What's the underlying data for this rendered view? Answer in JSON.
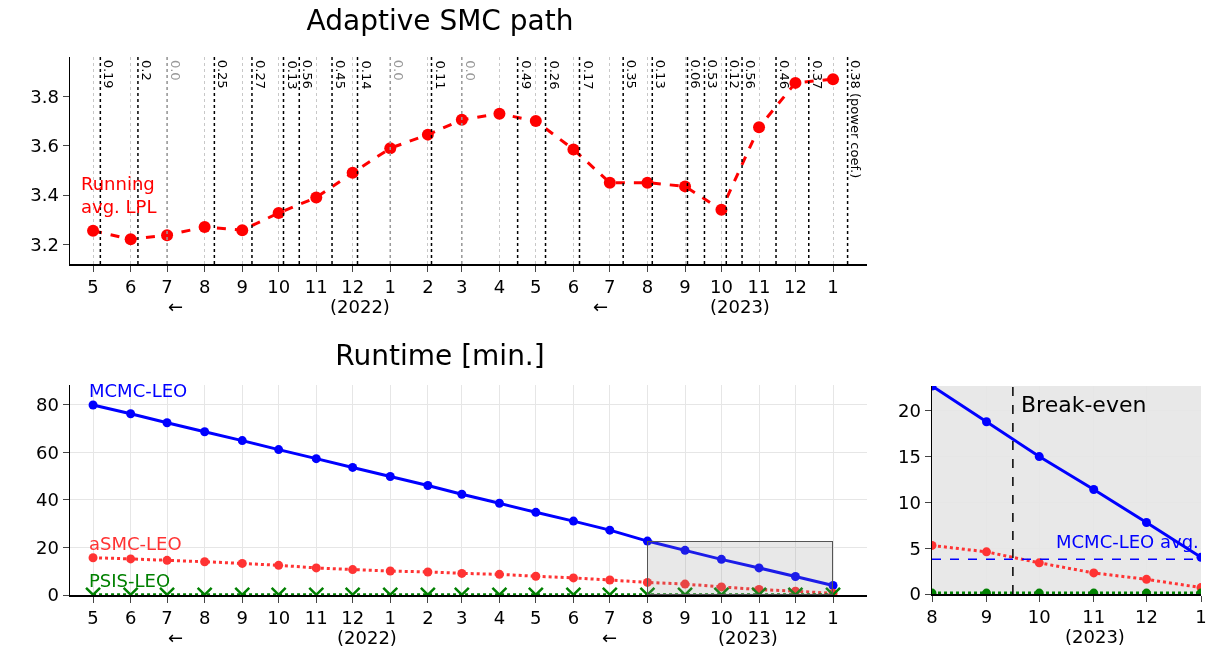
{
  "chart_data": [
    {
      "type": "line",
      "title": "Adaptive SMC path",
      "x": [
        "2022-05",
        "2022-06",
        "2022-07",
        "2022-08",
        "2022-09",
        "2022-10",
        "2022-11",
        "2022-12",
        "2023-01",
        "2023-02",
        "2023-03",
        "2023-04",
        "2023-05",
        "2023-06",
        "2023-07",
        "2023-08",
        "2023-09",
        "2023-10",
        "2023-11",
        "2023-12",
        "2024-01"
      ],
      "series": [
        {
          "name": "Running avg. LPL",
          "color": "#ff0000",
          "line_style": "dashed",
          "marker": "circle",
          "values": [
            3.255,
            3.22,
            3.237,
            3.27,
            3.257,
            3.327,
            3.39,
            3.49,
            3.59,
            3.645,
            3.705,
            3.73,
            3.7,
            3.585,
            3.45,
            3.45,
            3.435,
            3.34,
            3.675,
            3.855,
            3.87
          ]
        }
      ],
      "xlim": [
        "2022-04-12",
        "2024-01-29"
      ],
      "ylim": [
        3.12,
        3.96
      ],
      "yticks": [
        3.2,
        3.4,
        3.6,
        3.8
      ],
      "xticks": [
        {
          "value": "2022-05",
          "label": "5"
        },
        {
          "value": "2022-06",
          "label": "6"
        },
        {
          "value": "2022-07",
          "label": "7"
        },
        {
          "value": "2022-08",
          "label": "8"
        },
        {
          "value": "2022-09",
          "label": "9"
        },
        {
          "value": "2022-10",
          "label": "10"
        },
        {
          "value": "2022-11",
          "label": "11"
        },
        {
          "value": "2022-12",
          "label": "12"
        },
        {
          "value": "2023-01",
          "label": "1"
        },
        {
          "value": "2023-02",
          "label": "2"
        },
        {
          "value": "2023-03",
          "label": "3"
        },
        {
          "value": "2023-04",
          "label": "4"
        },
        {
          "value": "2023-05",
          "label": "5"
        },
        {
          "value": "2023-06",
          "label": "6"
        },
        {
          "value": "2023-07",
          "label": "7"
        },
        {
          "value": "2023-08",
          "label": "8"
        },
        {
          "value": "2023-09",
          "label": "9"
        },
        {
          "value": "2023-10",
          "label": "10"
        },
        {
          "value": "2023-11",
          "label": "11"
        },
        {
          "value": "2023-12",
          "label": "12"
        },
        {
          "value": "2024-01",
          "label": "1"
        }
      ],
      "ref_lines": [
        {
          "axis": "x",
          "value": "2022-05-07",
          "label": "0.19",
          "color": "#000000",
          "line_style": "dotted"
        },
        {
          "axis": "x",
          "value": "2022-06-07",
          "label": "0.2",
          "color": "#000000",
          "line_style": "dotted"
        },
        {
          "axis": "x",
          "value": "2022-07-01",
          "label": "0.0",
          "color": "#999999",
          "line_style": "dotted"
        },
        {
          "axis": "x",
          "value": "2022-08-09",
          "label": "0.25",
          "color": "#000000",
          "line_style": "dotted"
        },
        {
          "axis": "x",
          "value": "2022-09-09",
          "label": "0.27",
          "color": "#000000",
          "line_style": "dotted"
        },
        {
          "axis": "x",
          "value": "2022-10-05",
          "label": "0.13",
          "color": "#000000",
          "line_style": "dotted"
        },
        {
          "axis": "x",
          "value": "2022-10-18",
          "label": "0.56",
          "color": "#000000",
          "line_style": "dotted"
        },
        {
          "axis": "x",
          "value": "2022-11-14",
          "label": "0.45",
          "color": "#000000",
          "line_style": "dotted"
        },
        {
          "axis": "x",
          "value": "2022-12-05",
          "label": "0.14",
          "color": "#000000",
          "line_style": "dotted"
        },
        {
          "axis": "x",
          "value": "2023-01-01",
          "label": "0.0",
          "color": "#999999",
          "line_style": "dotted"
        },
        {
          "axis": "x",
          "value": "2023-02-04",
          "label": "0.11",
          "color": "#000000",
          "line_style": "dotted"
        },
        {
          "axis": "x",
          "value": "2023-03-01",
          "label": "0.0",
          "color": "#999999",
          "line_style": "dotted"
        },
        {
          "axis": "x",
          "value": "2023-04-16",
          "label": "0.49",
          "color": "#000000",
          "line_style": "dotted"
        },
        {
          "axis": "x",
          "value": "2023-05-09",
          "label": "0.26",
          "color": "#000000",
          "line_style": "dotted"
        },
        {
          "axis": "x",
          "value": "2023-06-06",
          "label": "0.17",
          "color": "#000000",
          "line_style": "dotted"
        },
        {
          "axis": "x",
          "value": "2023-07-12",
          "label": "0.35",
          "color": "#000000",
          "line_style": "dotted"
        },
        {
          "axis": "x",
          "value": "2023-08-05",
          "label": "0.13",
          "color": "#000000",
          "line_style": "dotted"
        },
        {
          "axis": "x",
          "value": "2023-09-03",
          "label": "0.06",
          "color": "#000000",
          "line_style": "dotted"
        },
        {
          "axis": "x",
          "value": "2023-09-17",
          "label": "0.53",
          "color": "#000000",
          "line_style": "dotted"
        },
        {
          "axis": "x",
          "value": "2023-10-05",
          "label": "0.12",
          "color": "#000000",
          "line_style": "dotted"
        },
        {
          "axis": "x",
          "value": "2023-10-18",
          "label": "0.56",
          "color": "#000000",
          "line_style": "dotted"
        },
        {
          "axis": "x",
          "value": "2023-11-15",
          "label": "0.46",
          "color": "#000000",
          "line_style": "dotted"
        },
        {
          "axis": "x",
          "value": "2023-12-12",
          "label": "0.37",
          "color": "#000000",
          "line_style": "dotted"
        },
        {
          "axis": "x",
          "value": "2024-01-13",
          "label": "0.38 (power coef.)",
          "color": "#000000",
          "line_style": "dotted"
        }
      ],
      "annotations": [
        "←",
        "(2022)",
        "←",
        "(2023)"
      ],
      "grid": "x",
      "legend": false
    },
    {
      "type": "line",
      "title": "Runtime [min.]",
      "x": [
        "2022-05",
        "2022-06",
        "2022-07",
        "2022-08",
        "2022-09",
        "2022-10",
        "2022-11",
        "2022-12",
        "2023-01",
        "2023-02",
        "2023-03",
        "2023-04",
        "2023-05",
        "2023-06",
        "2023-07",
        "2023-08",
        "2023-09",
        "2023-10",
        "2023-11",
        "2023-12",
        "2024-01"
      ],
      "series": [
        {
          "name": "MCMC-LEO",
          "color": "#0000ff",
          "line_style": "solid",
          "marker": "circle",
          "values": [
            80,
            76.3,
            72.5,
            68.7,
            65,
            61.2,
            57.4,
            53.7,
            49.9,
            46.1,
            42.4,
            38.6,
            34.8,
            31.1,
            27.3,
            22.7,
            18.8,
            15.0,
            11.4,
            7.8,
            4.0
          ]
        },
        {
          "name": "aSMC-LEO",
          "color": "#ff3333",
          "line_style": "dotted",
          "marker": "circle",
          "values": [
            15.7,
            15.2,
            14.6,
            14.0,
            13.3,
            12.5,
            11.4,
            10.7,
            10.1,
            9.7,
            9.1,
            8.7,
            7.9,
            7.2,
            6.3,
            5.3,
            4.6,
            3.4,
            2.3,
            1.6,
            0.7
          ]
        },
        {
          "name": "PSIS-LEO",
          "color": "#008000",
          "line_style": "dotted",
          "marker": "cross",
          "values": [
            0.1,
            0.1,
            0.1,
            0.1,
            0.1,
            0.1,
            0.1,
            0.1,
            0.1,
            0.1,
            0.1,
            0.1,
            0.1,
            0.1,
            0.1,
            0.1,
            0.1,
            0.1,
            0.1,
            0.1,
            0.1
          ]
        }
      ],
      "xlim": [
        "2022-04-12",
        "2024-01-29"
      ],
      "ylim": [
        0,
        88.4
      ],
      "yticks": [
        0,
        20,
        40,
        60,
        80
      ],
      "xticks": [
        {
          "value": "2022-05",
          "label": "5"
        },
        {
          "value": "2022-06",
          "label": "6"
        },
        {
          "value": "2022-07",
          "label": "7"
        },
        {
          "value": "2022-08",
          "label": "8"
        },
        {
          "value": "2022-09",
          "label": "9"
        },
        {
          "value": "2022-10",
          "label": "10"
        },
        {
          "value": "2022-11",
          "label": "11"
        },
        {
          "value": "2022-12",
          "label": "12"
        },
        {
          "value": "2023-01",
          "label": "1"
        },
        {
          "value": "2023-02",
          "label": "2"
        },
        {
          "value": "2023-03",
          "label": "3"
        },
        {
          "value": "2023-04",
          "label": "4"
        },
        {
          "value": "2023-05",
          "label": "5"
        },
        {
          "value": "2023-06",
          "label": "6"
        },
        {
          "value": "2023-07",
          "label": "7"
        },
        {
          "value": "2023-08",
          "label": "8"
        },
        {
          "value": "2023-09",
          "label": "9"
        },
        {
          "value": "2023-10",
          "label": "10"
        },
        {
          "value": "2023-11",
          "label": "11"
        },
        {
          "value": "2023-12",
          "label": "12"
        },
        {
          "value": "2024-01",
          "label": "1"
        }
      ],
      "annotations": [
        "←",
        "(2022)",
        "←",
        "(2023)"
      ],
      "grid": true,
      "legend": false
    },
    {
      "type": "line",
      "x": [
        "2023-08",
        "2023-09",
        "2023-10",
        "2023-11",
        "2023-12",
        "2024-01"
      ],
      "series": [
        {
          "color": "#0000ff",
          "line_style": "solid",
          "marker": "circle",
          "values": [
            22.7,
            18.8,
            15.0,
            11.4,
            7.8,
            4.0
          ]
        },
        {
          "color": "#ff3333",
          "line_style": "dotted",
          "marker": "circle",
          "values": [
            5.3,
            4.6,
            3.4,
            2.3,
            1.6,
            0.7
          ]
        },
        {
          "color": "#008000",
          "line_style": "dotted",
          "marker": "circle",
          "values": [
            0.1,
            0.1,
            0.1,
            0.1,
            0.1,
            0.1
          ]
        }
      ],
      "xlim": [
        "2023-08-01",
        "2024-01-01"
      ],
      "ylim": [
        0,
        22.7
      ],
      "yticks": [
        0,
        5,
        10,
        15,
        20
      ],
      "xticks": [
        {
          "value": "2023-08",
          "label": "8"
        },
        {
          "value": "2023-09",
          "label": "9"
        },
        {
          "value": "2023-10",
          "label": "10"
        },
        {
          "value": "2023-11",
          "label": "11"
        },
        {
          "value": "2023-12",
          "label": "12"
        },
        {
          "value": "2024-01",
          "label": "1"
        }
      ],
      "ref_lines": [
        {
          "axis": "x",
          "value": "2023-09-16",
          "label": "Break-even",
          "color": "#000000",
          "line_style": "dashed"
        },
        {
          "axis": "y",
          "value": 3.8,
          "label": "MCMC-LEO avg.",
          "color": "#0000ff",
          "line_style": "dashed"
        }
      ],
      "bands": [
        {
          "axis": "x",
          "from": "2023-08-01",
          "to": "2024-01-01",
          "color": "#e8e8e8"
        }
      ],
      "annotations": [
        "(2023)"
      ],
      "grid": true,
      "legend": false
    }
  ]
}
